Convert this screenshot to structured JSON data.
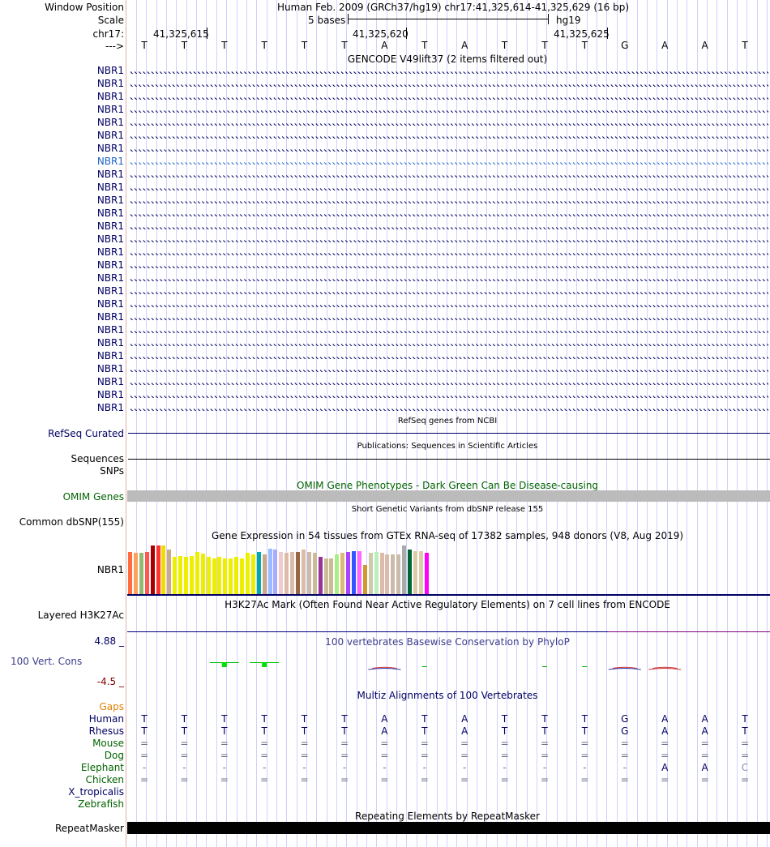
{
  "header": {
    "labels": {
      "window_position": "Window Position",
      "scale": "Scale",
      "chrom": "chr17:",
      "strand": "--->"
    },
    "assembly_line": "Human Feb. 2009 (GRCh37/hg19)   chr17:41,325,614-41,325,629 (16 bp)",
    "scale_text": "5 bases",
    "scale_db": "hg19",
    "coords": [
      "41,325,615",
      "41,325,620",
      "41,325,625"
    ],
    "bases": [
      "T",
      "T",
      "T",
      "T",
      "T",
      "T",
      "A",
      "T",
      "A",
      "T",
      "T",
      "T",
      "G",
      "A",
      "A",
      "T"
    ]
  },
  "gencode": {
    "title": "GENCODE V49lift37 (2 items filtered out)",
    "gene_label": "NBR1",
    "gene_count": 27,
    "highlight_index": 7
  },
  "refseq": {
    "title": "RefSeq genes from NCBI",
    "label": "RefSeq Curated"
  },
  "publications": {
    "title": "Publications: Sequences in Scientific Articles",
    "label1": "Sequences",
    "label2": "SNPs"
  },
  "omim": {
    "title": "OMIM Gene Phenotypes - Dark Green Can Be Disease-causing",
    "label": "OMIM Genes"
  },
  "dbsnp": {
    "title": "Short Genetic Variants from dbSNP release 155",
    "label": "Common dbSNP(155)"
  },
  "gtex": {
    "title": "Gene Expression in 54 tissues from GTEx RNA-seq of 17382 samples, 948 donors (V8, Aug 2019)",
    "label": "NBR1",
    "bars": [
      {
        "color": "#ff6d3f",
        "value": 0.8
      },
      {
        "color": "#ffa060",
        "value": 0.78
      },
      {
        "color": "#8fbc6f",
        "value": 0.78
      },
      {
        "color": "#ff5555",
        "value": 0.8
      },
      {
        "color": "#aa0000",
        "value": 0.92
      },
      {
        "color": "#ff3333",
        "value": 0.92
      },
      {
        "color": "#eedd00",
        "value": 0.92
      },
      {
        "color": "#ccaa88",
        "value": 0.85
      },
      {
        "color": "#eeee00",
        "value": 0.7
      },
      {
        "color": "#eeee00",
        "value": 0.72
      },
      {
        "color": "#eeee00",
        "value": 0.7
      },
      {
        "color": "#eeee00",
        "value": 0.72
      },
      {
        "color": "#eeee00",
        "value": 0.8
      },
      {
        "color": "#eeee00",
        "value": 0.77
      },
      {
        "color": "#eeee00",
        "value": 0.7
      },
      {
        "color": "#eeee00",
        "value": 0.67
      },
      {
        "color": "#eeee00",
        "value": 0.7
      },
      {
        "color": "#eeee00",
        "value": 0.67
      },
      {
        "color": "#eeee00",
        "value": 0.68
      },
      {
        "color": "#eeee00",
        "value": 0.7
      },
      {
        "color": "#eeee00",
        "value": 0.68
      },
      {
        "color": "#eeee00",
        "value": 0.78
      },
      {
        "color": "#eeee00",
        "value": 0.75
      },
      {
        "color": "#00aaaa",
        "value": 0.8
      },
      {
        "color": "#ccaa88",
        "value": 0.75
      },
      {
        "color": "#99bbff",
        "value": 0.86
      },
      {
        "color": "#aaaaff",
        "value": 0.85
      },
      {
        "color": "#eecccc",
        "value": 0.8
      },
      {
        "color": "#ddbbaa",
        "value": 0.78
      },
      {
        "color": "#ddbbaa",
        "value": 0.8
      },
      {
        "color": "#996644",
        "value": 0.8
      },
      {
        "color": "#ddbbaa",
        "value": 0.85
      },
      {
        "color": "#ccbbaa",
        "value": 0.8
      },
      {
        "color": "#ccbb99",
        "value": 0.78
      },
      {
        "color": "#993399",
        "value": 0.7
      },
      {
        "color": "#ccbb99",
        "value": 0.68
      },
      {
        "color": "#ccbb99",
        "value": 0.68
      },
      {
        "color": "#aaee88",
        "value": 0.75
      },
      {
        "color": "#ddbb77",
        "value": 0.78
      },
      {
        "color": "#aa44ff",
        "value": 0.8
      },
      {
        "color": "#3355ff",
        "value": 0.82
      },
      {
        "color": "#ff66ff",
        "value": 0.82
      },
      {
        "color": "#cc9933",
        "value": 0.55
      },
      {
        "color": "#ccccaa",
        "value": 0.78
      },
      {
        "color": "#bbeebb",
        "value": 0.8
      },
      {
        "color": "#ddbbaa",
        "value": 0.78
      },
      {
        "color": "#ddbbaa",
        "value": 0.75
      },
      {
        "color": "#ccbbaa",
        "value": 0.75
      },
      {
        "color": "#ccbbaa",
        "value": 0.75
      },
      {
        "color": "#aaaaaa",
        "value": 0.92
      },
      {
        "color": "#006633",
        "value": 0.85
      },
      {
        "color": "#ddccaa",
        "value": 0.82
      },
      {
        "color": "#ddccaa",
        "value": 0.82
      },
      {
        "color": "#ff00ff",
        "value": 0.78
      }
    ]
  },
  "h3k27ac": {
    "title": "H3K27Ac Mark (Often Found Near Active Regulatory Elements) on 7 cell lines from ENCODE",
    "label": "Layered H3K27Ac"
  },
  "phylop": {
    "title": "100 vertebrates Basewise Conservation by PhyloP",
    "label": "100 Vert. Cons",
    "max": "4.88 _",
    "min": "-4.5 _",
    "scores": [
      0.0,
      0.0,
      0.6,
      0.6,
      0.0,
      0.0,
      -0.3,
      0.2,
      0.0,
      0.0,
      0.2,
      0.2,
      -0.2,
      -0.3,
      0.0,
      0.0
    ]
  },
  "multiz": {
    "title": "Multiz Alignments of 100 Vertebrates",
    "gaps_label": "Gaps",
    "species": [
      {
        "name": "Human",
        "color": "#000064",
        "row": [
          "T",
          "T",
          "T",
          "T",
          "T",
          "T",
          "A",
          "T",
          "A",
          "T",
          "T",
          "T",
          "G",
          "A",
          "A",
          "T"
        ]
      },
      {
        "name": "Rhesus",
        "color": "#000064",
        "row": [
          "T",
          "T",
          "T",
          "T",
          "T",
          "T",
          "A",
          "T",
          "A",
          "T",
          "T",
          "T",
          "G",
          "A",
          "A",
          "T"
        ]
      },
      {
        "name": "Mouse",
        "color": "#006400",
        "row": [
          "=",
          "=",
          "=",
          "=",
          "=",
          "=",
          "=",
          "=",
          "=",
          "=",
          "=",
          "=",
          "=",
          "=",
          "=",
          "="
        ]
      },
      {
        "name": "Dog",
        "color": "#006400",
        "row": [
          "=",
          "=",
          "=",
          "=",
          "=",
          "=",
          "=",
          "=",
          "=",
          "=",
          "=",
          "=",
          "=",
          "=",
          "=",
          "="
        ]
      },
      {
        "name": "Elephant",
        "color": "#006400",
        "row": [
          "-",
          "-",
          "-",
          "-",
          "-",
          "-",
          "-",
          "-",
          "-",
          "-",
          "-",
          "-",
          "-",
          "A",
          "A",
          "C"
        ]
      },
      {
        "name": "Chicken",
        "color": "#006400",
        "row": [
          "=",
          "=",
          "=",
          "=",
          "=",
          "=",
          "=",
          "=",
          "=",
          "=",
          "=",
          "=",
          "=",
          "=",
          "=",
          "="
        ]
      },
      {
        "name": "X_tropicalis",
        "color": "#000064",
        "row": [
          "",
          "",
          "",
          "",
          "",
          "",
          "",
          "",
          "",
          "",
          "",
          "",
          "",
          "",
          "",
          ""
        ]
      },
      {
        "name": "Zebrafish",
        "color": "#006400",
        "row": [
          "",
          "",
          "",
          "",
          "",
          "",
          "",
          "",
          "",
          "",
          "",
          "",
          "",
          "",
          "",
          ""
        ]
      }
    ]
  },
  "repeatmasker": {
    "title": "Repeating Elements by RepeatMasker",
    "label": "RepeatMasker"
  },
  "colors": {
    "navy": "#000064",
    "blue": "#1e64c8",
    "green": "#006400",
    "grid": "#d0d0ff",
    "omim_gray": "#bbbbbb"
  }
}
